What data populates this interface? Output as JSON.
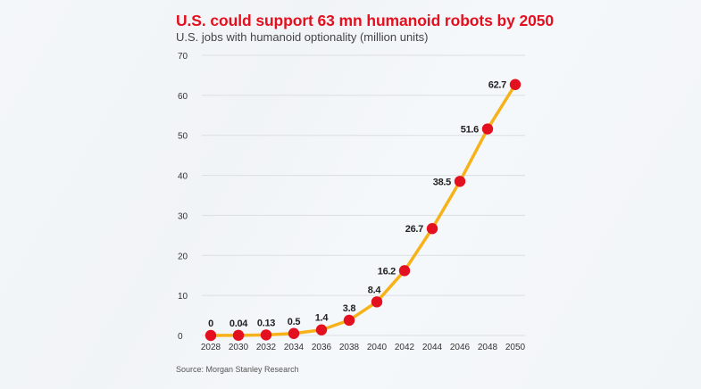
{
  "chart_data": {
    "type": "line",
    "title": "U.S. could support 63 mn humanoid robots by 2050",
    "subtitle": "U.S. jobs with humanoid optionality (million units)",
    "xlabel": "",
    "ylabel": "",
    "x": [
      2028,
      2030,
      2032,
      2034,
      2036,
      2038,
      2040,
      2042,
      2044,
      2046,
      2048,
      2050
    ],
    "series": [
      {
        "name": "U.S. jobs with humanoid optionality",
        "values": [
          0,
          0.04,
          0.13,
          0.5,
          1.4,
          3.8,
          8.4,
          16.2,
          26.7,
          38.5,
          51.6,
          62.7
        ],
        "data_labels": [
          "0",
          "0.04",
          "0.13",
          "0.5",
          "1.4",
          "3.8",
          "8.4",
          "16.2",
          "26.7",
          "38.5",
          "51.6",
          "62.7"
        ],
        "line_color": "#f7b21a",
        "marker_color": "#e3101f"
      }
    ],
    "ylim": [
      0,
      70
    ],
    "yticks": [
      0,
      10,
      20,
      30,
      40,
      50,
      60,
      70
    ],
    "xtick_labels": [
      "2028",
      "2030",
      "2032",
      "2034",
      "2036",
      "2038",
      "2040",
      "2042",
      "2044",
      "2046",
      "2048",
      "2050"
    ],
    "grid": "horizontal",
    "legend": "none",
    "source": "Source: Morgan Stanley Research"
  },
  "colors": {
    "title": "#e3101f",
    "line": "#f7b21a",
    "marker": "#e3101f",
    "grid": "#dcdfe2"
  }
}
